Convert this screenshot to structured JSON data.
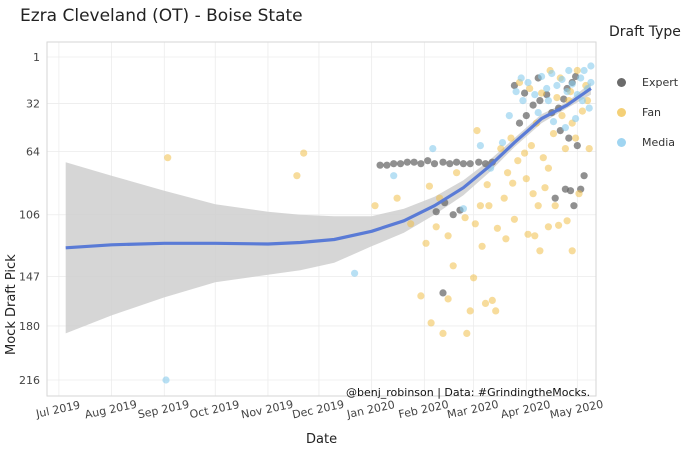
{
  "chart_data": {
    "type": "scatter",
    "title": "Ezra Cleveland (OT) - Boise State",
    "xlabel": "Date",
    "ylabel": "Mock Draft Pick",
    "x_range": [
      "2019-06-24",
      "2020-05-12"
    ],
    "y_range": [
      216,
      1
    ],
    "y_reversed": true,
    "grid": true,
    "legend_position": "right",
    "legend_title": "Draft Type",
    "x_ticks": [
      "Jul 2019",
      "Aug 2019",
      "Sep 2019",
      "Oct 2019",
      "Nov 2019",
      "Dec 2019",
      "Jan 2020",
      "Feb 2020",
      "Mar 2020",
      "Apr 2020",
      "May 2020"
    ],
    "x_tick_dates": [
      "2019-07-01",
      "2019-08-01",
      "2019-09-01",
      "2019-10-01",
      "2019-11-01",
      "2019-12-01",
      "2020-01-01",
      "2020-02-01",
      "2020-03-01",
      "2020-04-01",
      "2020-05-01"
    ],
    "y_ticks": [
      1,
      32,
      64,
      106,
      147,
      180,
      216
    ],
    "series": [
      {
        "name": "Expert",
        "color": "#6b6b6b",
        "points": [
          [
            "2020-01-06",
            73
          ],
          [
            "2020-01-10",
            73
          ],
          [
            "2020-01-14",
            72
          ],
          [
            "2020-01-18",
            72
          ],
          [
            "2020-01-22",
            71
          ],
          [
            "2020-01-26",
            71
          ],
          [
            "2020-01-30",
            72
          ],
          [
            "2020-02-03",
            70
          ],
          [
            "2020-02-07",
            72
          ],
          [
            "2020-02-12",
            71
          ],
          [
            "2020-02-16",
            72
          ],
          [
            "2020-02-20",
            71
          ],
          [
            "2020-02-24",
            72
          ],
          [
            "2020-02-28",
            72
          ],
          [
            "2020-03-04",
            71
          ],
          [
            "2020-03-08",
            72
          ],
          [
            "2020-03-12",
            71
          ],
          [
            "2020-02-08",
            104
          ],
          [
            "2020-02-13",
            98
          ],
          [
            "2020-02-18",
            106
          ],
          [
            "2020-02-22",
            103
          ],
          [
            "2020-02-12",
            158
          ],
          [
            "2020-03-28",
            45
          ],
          [
            "2020-04-01",
            40
          ],
          [
            "2020-04-05",
            33
          ],
          [
            "2020-04-09",
            30
          ],
          [
            "2020-04-13",
            26
          ],
          [
            "2020-04-16",
            38
          ],
          [
            "2020-04-20",
            35
          ],
          [
            "2020-04-23",
            29
          ],
          [
            "2020-04-25",
            22
          ],
          [
            "2020-04-28",
            18
          ],
          [
            "2020-04-30",
            14
          ],
          [
            "2020-04-21",
            50
          ],
          [
            "2020-04-26",
            55
          ],
          [
            "2020-04-18",
            95
          ],
          [
            "2020-04-27",
            90
          ],
          [
            "2020-05-03",
            89
          ],
          [
            "2020-05-05",
            80
          ],
          [
            "2020-04-24",
            89
          ],
          [
            "2020-05-01",
            60
          ],
          [
            "2020-04-29",
            100
          ],
          [
            "2020-03-25",
            20
          ],
          [
            "2020-04-08",
            15
          ],
          [
            "2020-03-31",
            25
          ]
        ]
      },
      {
        "name": "Fan",
        "color": "#f0c04a",
        "points": [
          [
            "2019-09-03",
            68
          ],
          [
            "2019-11-22",
            65
          ],
          [
            "2019-11-18",
            80
          ],
          [
            "2020-01-03",
            100
          ],
          [
            "2020-02-04",
            87
          ],
          [
            "2020-02-10",
            95
          ],
          [
            "2020-02-20",
            78
          ],
          [
            "2020-02-08",
            114
          ],
          [
            "2020-02-15",
            120
          ],
          [
            "2020-02-25",
            108
          ],
          [
            "2020-03-02",
            112
          ],
          [
            "2020-03-06",
            127
          ],
          [
            "2020-03-10",
            100
          ],
          [
            "2020-03-15",
            115
          ],
          [
            "2020-03-20",
            122
          ],
          [
            "2020-03-25",
            109
          ],
          [
            "2020-04-02",
            119
          ],
          [
            "2020-04-08",
            100
          ],
          [
            "2020-04-14",
            114
          ],
          [
            "2020-04-20",
            113
          ],
          [
            "2020-04-28",
            130
          ],
          [
            "2020-02-15",
            162
          ],
          [
            "2020-02-28",
            170
          ],
          [
            "2020-03-08",
            165
          ],
          [
            "2020-03-14",
            170
          ],
          [
            "2020-01-30",
            160
          ],
          [
            "2020-02-05",
            178
          ],
          [
            "2020-02-12",
            185
          ],
          [
            "2020-02-26",
            185
          ],
          [
            "2020-03-12",
            163
          ],
          [
            "2020-03-03",
            50
          ],
          [
            "2020-03-17",
            62
          ],
          [
            "2020-03-23",
            55
          ],
          [
            "2020-03-27",
            70
          ],
          [
            "2020-04-01",
            82
          ],
          [
            "2020-04-04",
            60
          ],
          [
            "2020-04-07",
            45
          ],
          [
            "2020-04-11",
            68
          ],
          [
            "2020-04-14",
            75
          ],
          [
            "2020-04-17",
            52
          ],
          [
            "2020-04-19",
            28
          ],
          [
            "2020-04-22",
            40
          ],
          [
            "2020-04-24",
            62
          ],
          [
            "2020-04-26",
            30
          ],
          [
            "2020-04-28",
            45
          ],
          [
            "2020-05-01",
            10
          ],
          [
            "2020-05-04",
            37
          ],
          [
            "2020-05-06",
            20
          ],
          [
            "2020-05-08",
            62
          ],
          [
            "2020-03-28",
            18
          ],
          [
            "2020-04-03",
            22
          ],
          [
            "2020-04-10",
            25
          ],
          [
            "2020-04-15",
            10
          ],
          [
            "2020-04-21",
            15
          ],
          [
            "2020-04-27",
            24
          ],
          [
            "2020-03-19",
            95
          ],
          [
            "2020-03-24",
            85
          ],
          [
            "2020-04-05",
            92
          ],
          [
            "2020-04-12",
            88
          ],
          [
            "2020-04-18",
            100
          ],
          [
            "2020-05-02",
            92
          ],
          [
            "2020-05-07",
            30
          ],
          [
            "2020-03-31",
            65
          ],
          [
            "2020-04-30",
            55
          ],
          [
            "2020-01-16",
            95
          ],
          [
            "2020-01-24",
            112
          ],
          [
            "2020-02-02",
            125
          ],
          [
            "2020-02-18",
            140
          ],
          [
            "2020-03-01",
            148
          ],
          [
            "2020-03-05",
            100
          ],
          [
            "2020-03-09",
            86
          ],
          [
            "2020-03-21",
            78
          ],
          [
            "2020-04-06",
            120
          ],
          [
            "2020-04-09",
            130
          ],
          [
            "2020-04-25",
            110
          ]
        ]
      },
      {
        "name": "Media",
        "color": "#88cbed",
        "points": [
          [
            "2019-09-02",
            216
          ],
          [
            "2019-12-22",
            145
          ],
          [
            "2020-01-14",
            80
          ],
          [
            "2020-02-06",
            62
          ],
          [
            "2020-02-24",
            102
          ],
          [
            "2020-03-05",
            60
          ],
          [
            "2020-03-11",
            75
          ],
          [
            "2020-03-18",
            58
          ],
          [
            "2020-03-26",
            24
          ],
          [
            "2020-03-29",
            15
          ],
          [
            "2020-04-02",
            18
          ],
          [
            "2020-04-06",
            26
          ],
          [
            "2020-04-10",
            14
          ],
          [
            "2020-04-13",
            22
          ],
          [
            "2020-04-16",
            12
          ],
          [
            "2020-04-19",
            20
          ],
          [
            "2020-04-22",
            16
          ],
          [
            "2020-04-25",
            24
          ],
          [
            "2020-04-28",
            19
          ],
          [
            "2020-05-01",
            26
          ],
          [
            "2020-05-03",
            15
          ],
          [
            "2020-05-05",
            10
          ],
          [
            "2020-05-07",
            22
          ],
          [
            "2020-05-09",
            7
          ],
          [
            "2020-05-09",
            18
          ],
          [
            "2020-05-08",
            35
          ],
          [
            "2020-04-30",
            42
          ],
          [
            "2020-04-24",
            48
          ],
          [
            "2020-04-08",
            38
          ],
          [
            "2020-03-30",
            30
          ],
          [
            "2020-03-22",
            40
          ],
          [
            "2020-04-17",
            44
          ],
          [
            "2020-05-04",
            30
          ],
          [
            "2020-04-26",
            10
          ],
          [
            "2020-04-14",
            30
          ]
        ]
      }
    ],
    "trend": {
      "color": "#5a7bd6",
      "points": [
        [
          "2019-07-05",
          128
        ],
        [
          "2019-08-01",
          126
        ],
        [
          "2019-09-01",
          125
        ],
        [
          "2019-10-01",
          125
        ],
        [
          "2019-11-01",
          125.5
        ],
        [
          "2019-11-20",
          124.5
        ],
        [
          "2019-12-10",
          122.5
        ],
        [
          "2020-01-01",
          117
        ],
        [
          "2020-01-20",
          110
        ],
        [
          "2020-02-07",
          100
        ],
        [
          "2020-02-24",
          88
        ],
        [
          "2020-03-10",
          74
        ],
        [
          "2020-03-25",
          58
        ],
        [
          "2020-04-10",
          42
        ],
        [
          "2020-04-25",
          33
        ],
        [
          "2020-05-09",
          22
        ]
      ],
      "band_upper": [
        [
          "2019-07-05",
          71
        ],
        [
          "2019-08-01",
          80
        ],
        [
          "2019-09-01",
          90
        ],
        [
          "2019-10-01",
          99
        ],
        [
          "2019-11-01",
          104
        ],
        [
          "2019-11-20",
          106
        ],
        [
          "2019-12-10",
          107
        ],
        [
          "2020-01-01",
          107
        ],
        [
          "2020-01-20",
          102
        ],
        [
          "2020-02-07",
          94
        ],
        [
          "2020-02-24",
          83
        ],
        [
          "2020-03-10",
          70
        ],
        [
          "2020-03-25",
          55
        ],
        [
          "2020-04-10",
          39
        ],
        [
          "2020-04-25",
          31
        ],
        [
          "2020-05-09",
          18
        ]
      ],
      "band_lower": [
        [
          "2019-07-05",
          185
        ],
        [
          "2019-08-01",
          173
        ],
        [
          "2019-09-01",
          161
        ],
        [
          "2019-10-01",
          151
        ],
        [
          "2019-11-01",
          146
        ],
        [
          "2019-11-20",
          143
        ],
        [
          "2019-12-10",
          138
        ],
        [
          "2020-01-01",
          127
        ],
        [
          "2020-01-20",
          118
        ],
        [
          "2020-02-07",
          106
        ],
        [
          "2020-02-24",
          93
        ],
        [
          "2020-03-10",
          78
        ],
        [
          "2020-03-25",
          61
        ],
        [
          "2020-04-10",
          45
        ],
        [
          "2020-04-25",
          35
        ],
        [
          "2020-05-09",
          26
        ]
      ]
    },
    "caption": "@benj_robinson | Data: #GrindingtheMocks."
  }
}
